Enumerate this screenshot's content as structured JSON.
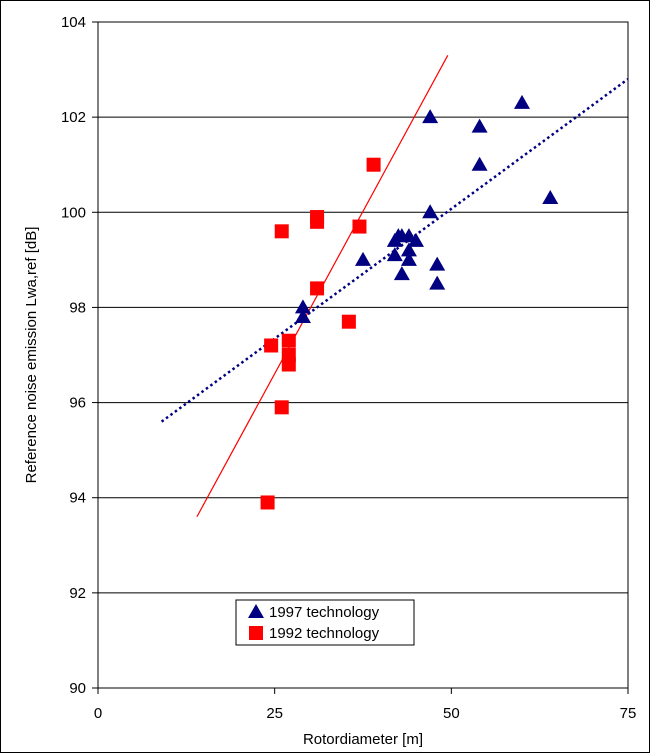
{
  "chart_data": {
    "type": "scatter",
    "title": "",
    "xlabel": "Rotordiameter [m]",
    "ylabel": "Reference noise emission Lwa,ref [dB]",
    "xlim": [
      0,
      75
    ],
    "ylim": [
      90,
      104
    ],
    "x_ticks": [
      0,
      25,
      50,
      75
    ],
    "y_ticks": [
      90,
      92,
      94,
      96,
      98,
      100,
      102,
      104
    ],
    "grid": "horizontal",
    "legend_position": "bottom-left",
    "series": [
      {
        "name": "1997 technology",
        "marker": "triangle",
        "color": "#000080",
        "x": [
          47,
          54,
          54,
          60,
          64,
          47,
          37.5,
          42,
          42.5,
          43,
          44,
          45,
          42,
          44,
          44,
          43,
          48,
          48,
          29,
          29
        ],
        "y": [
          102.0,
          101.8,
          101.0,
          102.3,
          100.3,
          100.0,
          99.0,
          99.4,
          99.5,
          99.5,
          99.5,
          99.4,
          99.1,
          99.2,
          99.0,
          98.7,
          98.9,
          98.5,
          98.0,
          97.8
        ],
        "trendline": {
          "style": "dotted",
          "color": "#000080",
          "x": [
            9,
            75
          ],
          "y": [
            95.6,
            102.8
          ]
        }
      },
      {
        "name": "1992 technology",
        "marker": "square",
        "color": "#ff0000",
        "x": [
          26,
          31,
          31,
          37,
          39,
          31,
          35.5,
          27,
          27,
          27,
          24.5,
          26,
          24
        ],
        "y": [
          99.6,
          99.9,
          99.8,
          99.7,
          101.0,
          98.4,
          97.7,
          97.3,
          97.0,
          96.8,
          97.2,
          95.9,
          93.9
        ],
        "trendline": {
          "style": "solid",
          "color": "#ff0000",
          "x": [
            14,
            49.5
          ],
          "y": [
            93.6,
            103.3
          ]
        }
      }
    ]
  }
}
